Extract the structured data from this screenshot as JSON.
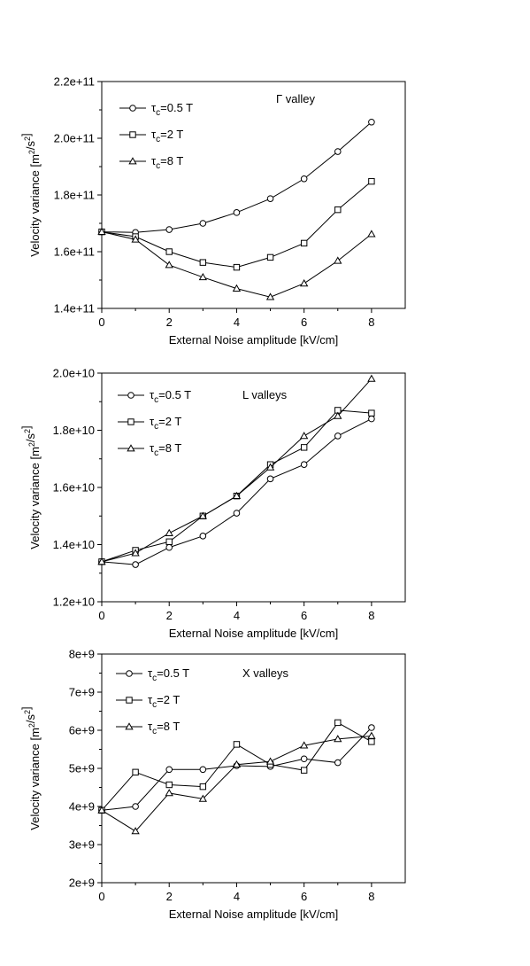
{
  "chart_data": [
    {
      "type": "line",
      "panel_label": "Γ valley",
      "x": [
        0,
        1,
        2,
        3,
        4,
        5,
        6,
        7,
        8
      ],
      "xlabel": "External Noise amplitude [kV/cm]",
      "xlim": [
        0,
        9
      ],
      "xticks": [
        0,
        2,
        4,
        6,
        8
      ],
      "xtick_labels": [
        "0",
        "2",
        "4",
        "6",
        "8"
      ],
      "ylabel": "Velocity variance [m²/s²]",
      "ylim": [
        140000000000.0,
        220000000000.0
      ],
      "yticks": [
        140000000000.0,
        160000000000.0,
        180000000000.0,
        200000000000.0,
        220000000000.0
      ],
      "ytick_labels": [
        "1.4e+11",
        "1.6e+11",
        "1.8e+11",
        "2.0e+11",
        "2.2e+11"
      ],
      "series": [
        {
          "name": "τc=0.5 T",
          "marker": "circle",
          "values": [
            167000000000.0,
            166800000000.0,
            167800000000.0,
            170000000000.0,
            173800000000.0,
            178700000000.0,
            185700000000.0,
            195300000000.0,
            205700000000.0
          ]
        },
        {
          "name": "τc=2 T",
          "marker": "square",
          "values": [
            167000000000.0,
            165300000000.0,
            160000000000.0,
            156200000000.0,
            154500000000.0,
            158000000000.0,
            163000000000.0,
            174800000000.0,
            184800000000.0
          ]
        },
        {
          "name": "τc=8 T",
          "marker": "triangle",
          "values": [
            167000000000.0,
            164300000000.0,
            155300000000.0,
            151000000000.0,
            147000000000.0,
            144000000000.0,
            148800000000.0,
            156800000000.0,
            166200000000.0
          ]
        }
      ]
    },
    {
      "type": "line",
      "panel_label": "L valleys",
      "x": [
        0,
        1,
        2,
        3,
        4,
        5,
        6,
        7,
        8
      ],
      "xlabel": "External Noise amplitude [kV/cm]",
      "xlim": [
        0,
        9
      ],
      "xticks": [
        0,
        2,
        4,
        6,
        8
      ],
      "xtick_labels": [
        "0",
        "2",
        "4",
        "6",
        "8"
      ],
      "ylabel": "Velocity variance [m²/s²]",
      "ylim": [
        12000000000.0,
        20000000000.0
      ],
      "yticks": [
        12000000000.0,
        14000000000.0,
        16000000000.0,
        18000000000.0,
        20000000000.0
      ],
      "ytick_labels": [
        "1.2e+10",
        "1.4e+10",
        "1.6e+10",
        "1.8e+10",
        "2.0e+10"
      ],
      "series": [
        {
          "name": "τc=0.5 T",
          "marker": "circle",
          "values": [
            13400000000.0,
            13300000000.0,
            13900000000.0,
            14300000000.0,
            15100000000.0,
            16300000000.0,
            16800000000.0,
            17800000000.0,
            18400000000.0
          ]
        },
        {
          "name": "τc=2 T",
          "marker": "square",
          "values": [
            13400000000.0,
            13800000000.0,
            14100000000.0,
            15000000000.0,
            15700000000.0,
            16800000000.0,
            17400000000.0,
            18700000000.0,
            18600000000.0
          ]
        },
        {
          "name": "τc=8 T",
          "marker": "triangle",
          "values": [
            13400000000.0,
            13700000000.0,
            14400000000.0,
            15000000000.0,
            15700000000.0,
            16700000000.0,
            17800000000.0,
            18500000000.0,
            19800000000.0
          ]
        }
      ]
    },
    {
      "type": "line",
      "panel_label": "X valleys",
      "x": [
        0,
        1,
        2,
        3,
        4,
        5,
        6,
        7,
        8
      ],
      "xlabel": "External Noise amplitude [kV/cm]",
      "xlim": [
        0,
        9
      ],
      "xticks": [
        0,
        2,
        4,
        6,
        8
      ],
      "xtick_labels": [
        "0",
        "2",
        "4",
        "6",
        "8"
      ],
      "ylabel": "Velocity variance [m²/s²]",
      "ylim": [
        2000000000.0,
        8000000000.0
      ],
      "yticks": [
        2000000000.0,
        3000000000.0,
        4000000000.0,
        5000000000.0,
        6000000000.0,
        7000000000.0,
        8000000000.0
      ],
      "ytick_labels": [
        "2e+9",
        "3e+9",
        "4e+9",
        "5e+9",
        "6e+9",
        "7e+9",
        "8e+9"
      ],
      "series": [
        {
          "name": "τc=0.5 T",
          "marker": "circle",
          "values": [
            3900000000.0,
            4000000000.0,
            4970000000.0,
            4970000000.0,
            5070000000.0,
            5050000000.0,
            5250000000.0,
            5150000000.0,
            6070000000.0
          ]
        },
        {
          "name": "τc=2 T",
          "marker": "square",
          "values": [
            3900000000.0,
            4900000000.0,
            4570000000.0,
            4520000000.0,
            5630000000.0,
            5100000000.0,
            4950000000.0,
            6200000000.0,
            5700000000.0
          ]
        },
        {
          "name": "τc=8 T",
          "marker": "triangle",
          "values": [
            3900000000.0,
            3350000000.0,
            4350000000.0,
            4200000000.0,
            5100000000.0,
            5180000000.0,
            5600000000.0,
            5770000000.0,
            5850000000.0
          ]
        }
      ]
    }
  ]
}
